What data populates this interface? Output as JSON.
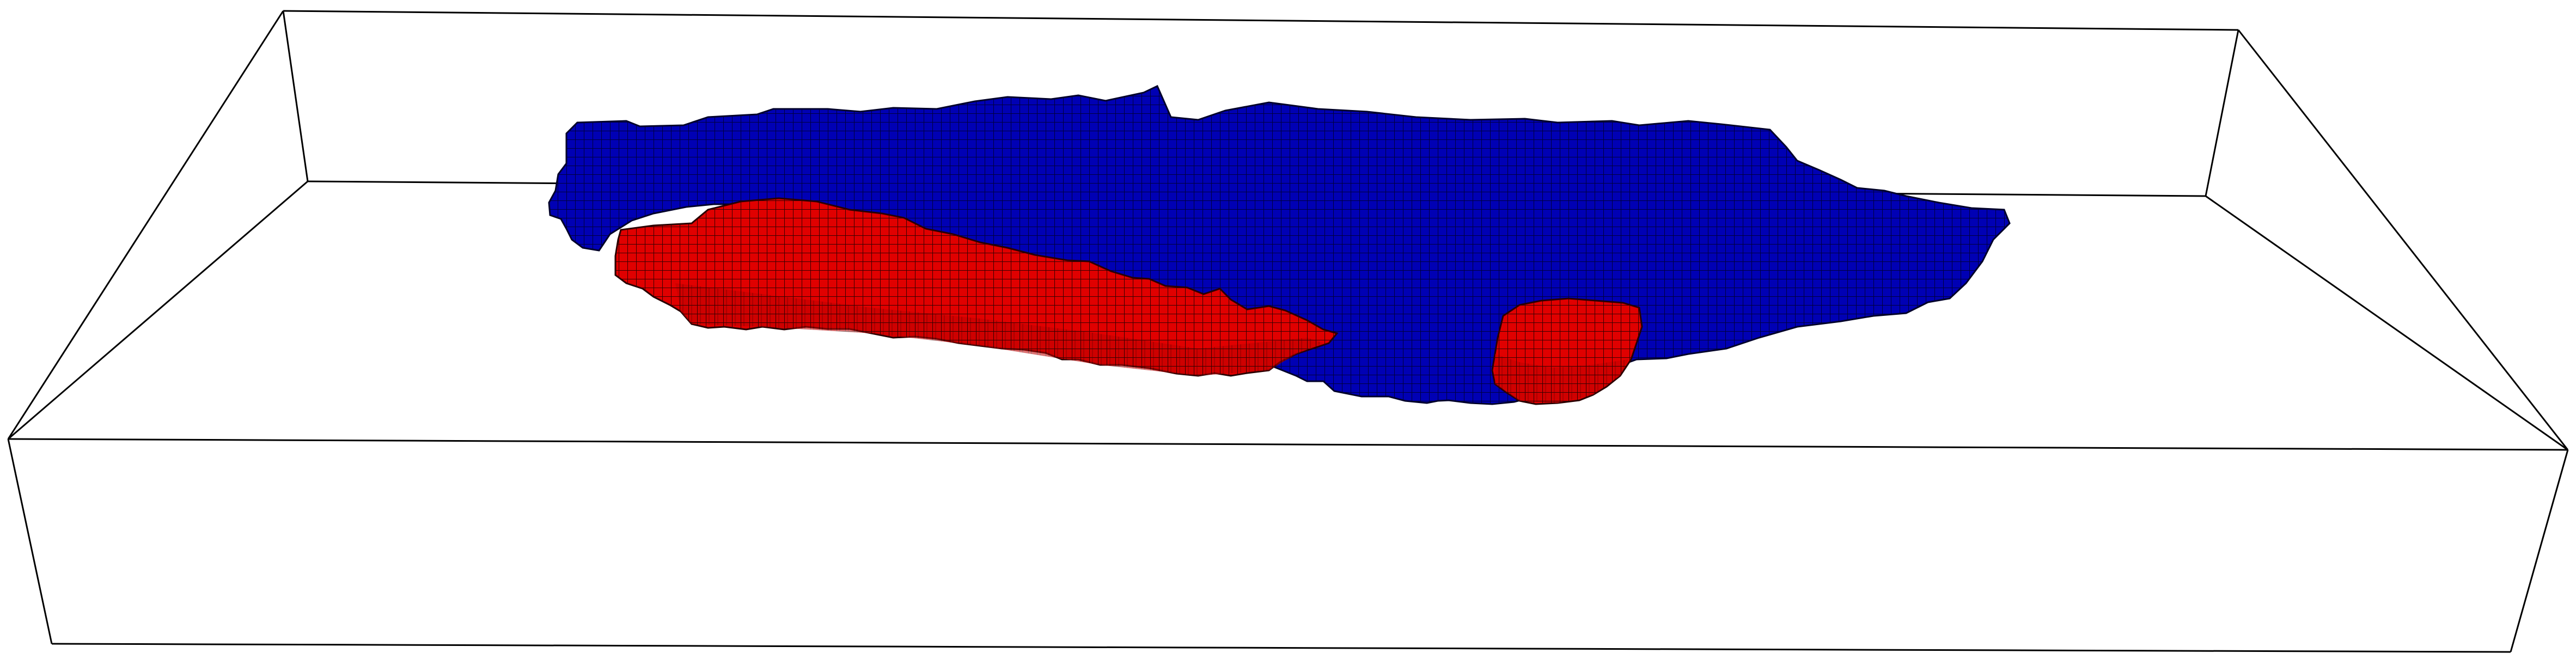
{
  "scene": {
    "background": "#ffffff",
    "box_edge_color": "#000000",
    "regions": [
      {
        "id": "region-blue",
        "fill": "#0000b4",
        "grid": "#000050"
      },
      {
        "id": "region-red-large",
        "fill": "#e00000",
        "grid": "#400000"
      },
      {
        "id": "region-red-small",
        "fill": "#e00000",
        "grid": "#400000"
      }
    ]
  }
}
